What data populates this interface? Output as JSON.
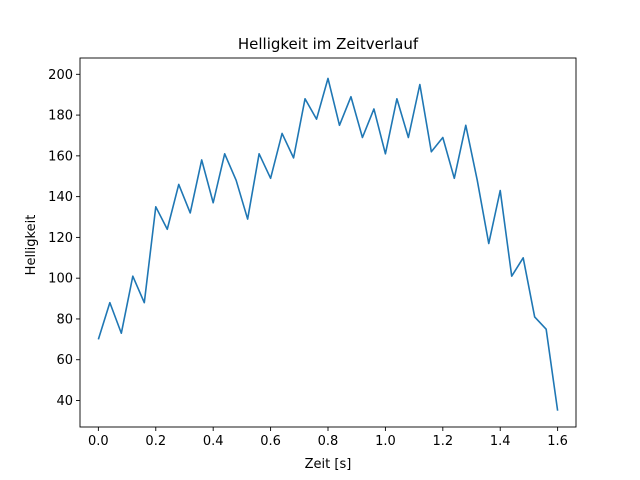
{
  "chart_data": {
    "type": "line",
    "title": "Helligkeit im Zeitverlauf",
    "xlabel": "Zeit [s]",
    "ylabel": "Helligkeit",
    "xlim": [
      -0.064,
      1.664
    ],
    "ylim": [
      27,
      208
    ],
    "xticks": [
      0.0,
      0.2,
      0.4,
      0.6,
      0.8,
      1.0,
      1.2,
      1.4,
      1.6
    ],
    "xtick_labels": [
      "0.0",
      "0.2",
      "0.4",
      "0.6",
      "0.8",
      "1.0",
      "1.2",
      "1.4",
      "1.6"
    ],
    "yticks": [
      40,
      60,
      80,
      100,
      120,
      140,
      160,
      180,
      200
    ],
    "ytick_labels": [
      "40",
      "60",
      "80",
      "100",
      "120",
      "140",
      "160",
      "180",
      "200"
    ],
    "grid": false,
    "legend": "none",
    "series": [
      {
        "color": "#1f77b4",
        "x": [
          0.0,
          0.04,
          0.08,
          0.12,
          0.16,
          0.2,
          0.24,
          0.28,
          0.32,
          0.36,
          0.4,
          0.44,
          0.48,
          0.52,
          0.56,
          0.6,
          0.64,
          0.68,
          0.72,
          0.76,
          0.8,
          0.84,
          0.88,
          0.92,
          0.96,
          1.0,
          1.04,
          1.08,
          1.12,
          1.16,
          1.2,
          1.24,
          1.28,
          1.32,
          1.36,
          1.4,
          1.44,
          1.48,
          1.52,
          1.56,
          1.6
        ],
        "y": [
          70,
          88,
          73,
          101,
          88,
          135,
          124,
          146,
          132,
          158,
          137,
          161,
          148,
          129,
          161,
          149,
          171,
          159,
          188,
          178,
          198,
          175,
          189,
          169,
          183,
          161,
          188,
          169,
          195,
          162,
          169,
          149,
          175,
          148,
          117,
          143,
          101,
          110,
          81,
          75,
          35
        ]
      }
    ]
  }
}
